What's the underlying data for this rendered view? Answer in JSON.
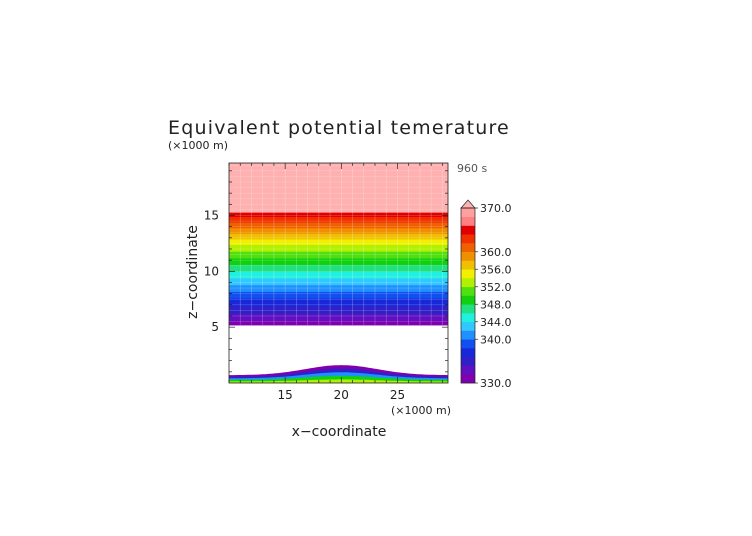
{
  "chart_data": {
    "type": "heatmap",
    "title": "Equivalent potential temerature",
    "xlabel": "x−coordinate",
    "ylabel": "z−coordinate",
    "x_unit": "(×1000 m)",
    "y_unit": "(×1000 m)",
    "time_label": "960 s",
    "xlim": [
      10,
      29.5
    ],
    "ylim": [
      0,
      19.7
    ],
    "x_ticks": [
      15,
      20,
      25
    ],
    "y_ticks": [
      5,
      10,
      15
    ],
    "x_tick_labels": [
      "15",
      "20",
      "25"
    ],
    "y_tick_labels": [
      "5",
      "10",
      "15"
    ],
    "colorbar": {
      "min": 330,
      "max": 370,
      "step": 2,
      "tick_values": [
        330,
        340,
        344,
        348,
        352,
        356,
        360,
        370
      ],
      "tick_labels": [
        "330.0",
        "340.0",
        "344.0",
        "348.0",
        "352.0",
        "356.0",
        "360.0",
        "370.0"
      ],
      "colors": [
        "#8000b0",
        "#6010c0",
        "#3020c8",
        "#1828d8",
        "#1050f0",
        "#2090ff",
        "#30c8ff",
        "#20f0e0",
        "#20e080",
        "#10d010",
        "#50e010",
        "#b0f000",
        "#f0f000",
        "#f0c000",
        "#f09000",
        "#f06000",
        "#f03000",
        "#e00000",
        "#ff8080",
        "#ffa0a0"
      ],
      "over_color": "#ffb0b0"
    },
    "upper_layers": [
      {
        "z0": 5.2,
        "z1": 5.6,
        "value": 331
      },
      {
        "z0": 5.6,
        "z1": 6.2,
        "value": 333
      },
      {
        "z0": 6.2,
        "z1": 6.9,
        "value": 335
      },
      {
        "z0": 6.9,
        "z1": 7.6,
        "value": 337
      },
      {
        "z0": 7.6,
        "z1": 8.2,
        "value": 339
      },
      {
        "z0": 8.2,
        "z1": 8.8,
        "value": 341
      },
      {
        "z0": 8.8,
        "z1": 9.4,
        "value": 343
      },
      {
        "z0": 9.4,
        "z1": 10.0,
        "value": 345
      },
      {
        "z0": 10.0,
        "z1": 10.6,
        "value": 347
      },
      {
        "z0": 10.6,
        "z1": 11.2,
        "value": 349
      },
      {
        "z0": 11.2,
        "z1": 11.8,
        "value": 351
      },
      {
        "z0": 11.8,
        "z1": 12.4,
        "value": 353
      },
      {
        "z0": 12.4,
        "z1": 12.9,
        "value": 355
      },
      {
        "z0": 12.9,
        "z1": 13.4,
        "value": 357
      },
      {
        "z0": 13.4,
        "z1": 13.9,
        "value": 359
      },
      {
        "z0": 13.9,
        "z1": 14.4,
        "value": 361
      },
      {
        "z0": 14.4,
        "z1": 14.9,
        "value": 363
      },
      {
        "z0": 14.9,
        "z1": 15.3,
        "value": 365
      },
      {
        "z0": 15.3,
        "z1": 19.7,
        "value": 371
      }
    ],
    "lower_layer": {
      "base_top": 0.7,
      "hill_center": 20,
      "hill_width": 4.5,
      "hill_height": 0.9,
      "values": [
        331,
        335,
        341,
        349,
        353
      ]
    },
    "grid": true
  }
}
